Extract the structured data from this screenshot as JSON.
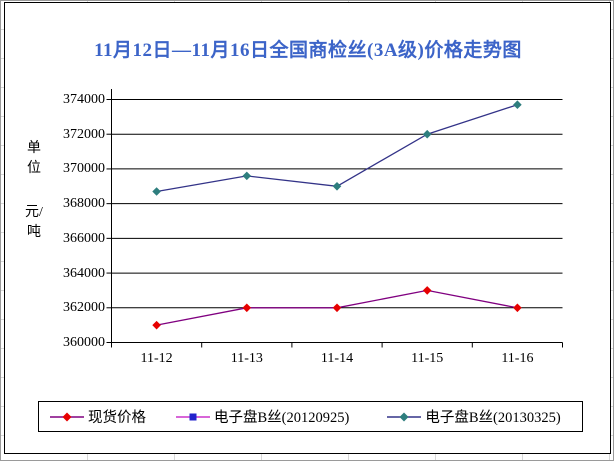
{
  "title": "11月12日—11月16日全国商检丝(3A级)价格走势图",
  "title_color": "#3c64c8",
  "y_axis_unit": {
    "top": "单位",
    "bottom": "元/吨"
  },
  "chart_data": {
    "type": "line",
    "title": "11月12日—11月16日全国商检丝(3A级)价格走势图",
    "categories": [
      "11-12",
      "11-13",
      "11-14",
      "11-15",
      "11-16"
    ],
    "series": [
      {
        "name": "现货价格",
        "values": [
          361000,
          362000,
          362000,
          363000,
          362000
        ],
        "line_color": "#800080",
        "marker": "diamond",
        "marker_color": "#e60000"
      },
      {
        "name": "电子盘B丝(20120925)",
        "values": null,
        "line_color": "#cc33cc",
        "marker": "square",
        "marker_color": "#2222cc"
      },
      {
        "name": "电子盘B丝(20130325)",
        "values": [
          368700,
          369600,
          369000,
          372000,
          373700
        ],
        "line_color": "#333388",
        "marker": "diamond",
        "marker_color": "#2e7e7e"
      }
    ],
    "ylabel": "单位 元/吨",
    "xlabel": "",
    "ylim": [
      360000,
      374000
    ],
    "y_ticks": [
      360000,
      362000,
      364000,
      366000,
      368000,
      370000,
      372000,
      374000
    ],
    "grid": "horizontal-major",
    "legend_position": "bottom",
    "plot_bg": "#ffffff",
    "axis_color": "#000000"
  }
}
